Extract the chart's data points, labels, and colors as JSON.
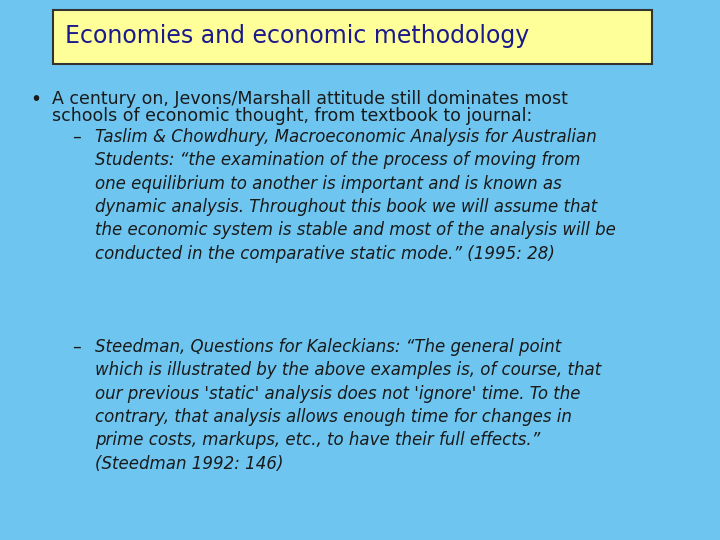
{
  "background_color": "#6EC6F0",
  "title_box_color": "#FFFF99",
  "title_box_edge_color": "#333333",
  "title_text": "Economies and economic methodology",
  "title_color": "#1a1a8c",
  "body_text_color": "#1a1a1a",
  "title_fontsize": 17,
  "body_fontsize": 12.5,
  "sub_fontsize": 12.0,
  "bullet_line1": "A century on, Jevons/Marshall attitude still dominates most",
  "bullet_line2": "schools of economic thought, from textbook to journal:",
  "dash1_text": "Taslim & Chowdhury, Macroeconomic Analysis for Australian\nStudents: “the examination of the process of moving from\none equilibrium to another is important and is known as\ndynamic analysis. Throughout this book we will assume that\nthe economic system is stable and most of the analysis will be\nconducted in the comparative static mode.” (1995: 28)",
  "dash2_text": "Steedman, Questions for Kaleckians: “The general point\nwhich is illustrated by the above examples is, of course, that\nour previous 'static' analysis does not 'ignore' time. To the\ncontrary, that analysis allows enough time for changes in\nprime costs, markups, etc., to have their full effects.”\n(Steedman 1992: 146)"
}
